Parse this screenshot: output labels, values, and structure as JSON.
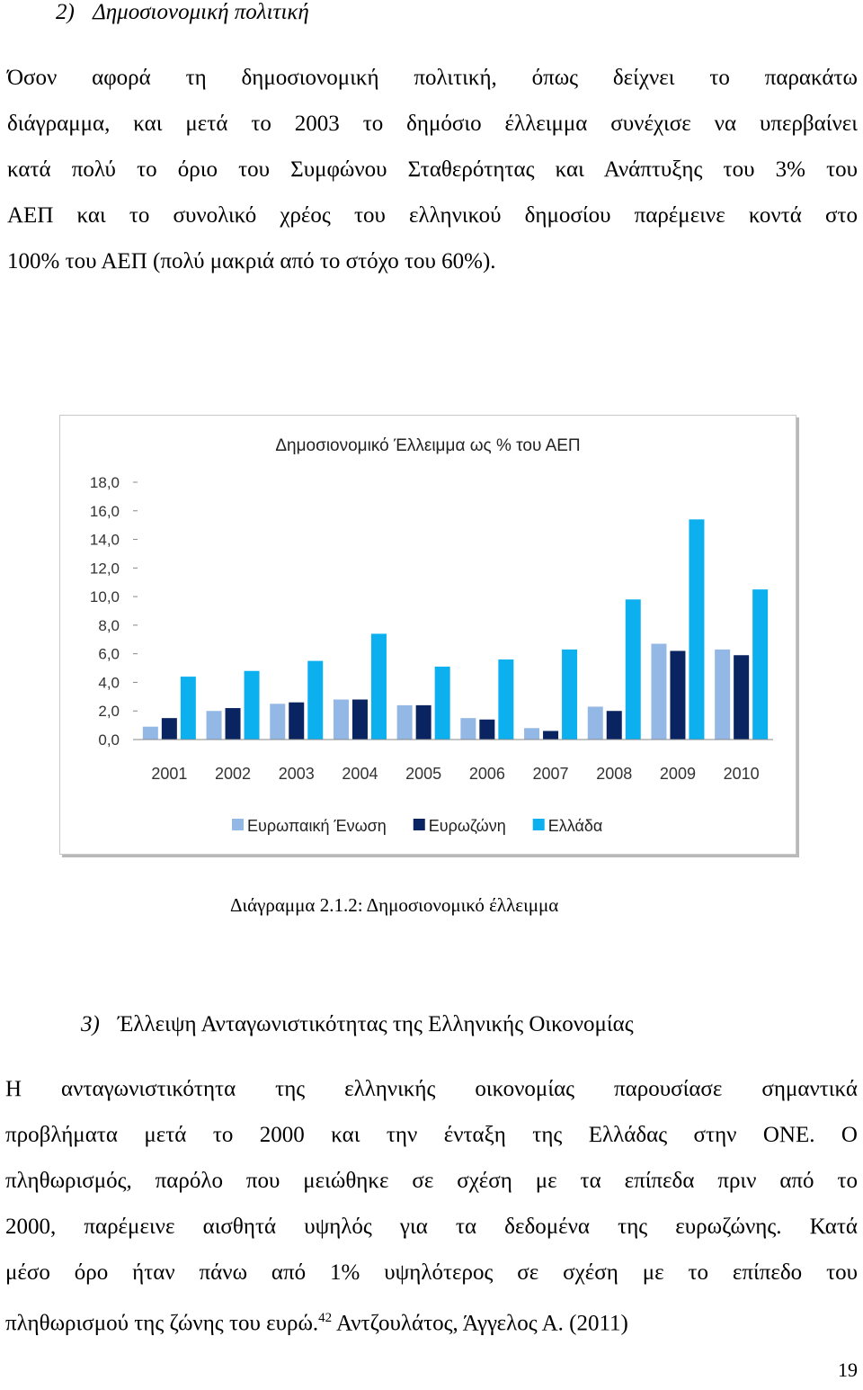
{
  "section2": {
    "heading_num": "2)",
    "heading_text": "Δημοσιονομική πολιτική",
    "lines": [
      "Όσον αφορά τη δημοσιονομική πολιτική, όπως δείχνει το παρακάτω",
      "διάγραμμα, και μετά το 2003 το δημόσιο έλλειμμα συνέχισε να υπερβαίνει",
      "κατά πολύ το όριο του Συμφώνου Σταθερότητας και Ανάπτυξης του 3% του",
      "ΑΕΠ και το συνολικό χρέος του ελληνικού δημοσίου παρέμεινε κοντά στο",
      "100% του ΑΕΠ (πολύ μακριά από το στόχο του 60%)."
    ]
  },
  "chart_data": {
    "type": "bar",
    "title": "Δημοσιονομικό Έλλειμμα ως % του ΑΕΠ",
    "categories": [
      "2001",
      "2002",
      "2003",
      "2004",
      "2005",
      "2006",
      "2007",
      "2008",
      "2009",
      "2010"
    ],
    "series": [
      {
        "name": "Ευρωπαική Ένωση",
        "color": "#94b8e6",
        "values": [
          0.9,
          2.0,
          2.5,
          2.8,
          2.4,
          1.5,
          0.8,
          2.3,
          6.7,
          6.3
        ]
      },
      {
        "name": "Ευρωζώνη",
        "color": "#0a2461",
        "values": [
          1.5,
          2.2,
          2.6,
          2.8,
          2.4,
          1.4,
          0.6,
          2.0,
          6.2,
          5.9
        ]
      },
      {
        "name": "Ελλάδα",
        "color": "#0db0ef",
        "values": [
          4.4,
          4.8,
          5.5,
          7.4,
          5.1,
          5.6,
          6.3,
          9.8,
          15.4,
          10.5
        ]
      }
    ],
    "yticks": [
      "0,0",
      "2,0",
      "4,0",
      "6,0",
      "8,0",
      "10,0",
      "12,0",
      "14,0",
      "16,0",
      "18,0"
    ],
    "ylim": [
      0,
      18
    ],
    "grid": false,
    "legend": "bottom"
  },
  "caption": "Διάγραμμα 2.1.2: Δημοσιονομικό έλλειμμα",
  "section3": {
    "heading_num": "3)",
    "heading_text": "Έλλειψη Ανταγωνιστικότητας της Ελληνικής Οικονομίας",
    "lines": [
      "Η ανταγωνιστικότητα της ελληνικής οικονομίας παρουσίασε σημαντικά",
      "προβλήματα μετά το 2000 και την ένταξη της Ελλάδας στην ΟΝΕ. Ο",
      "πληθωρισμός, παρόλο που μειώθηκε σε σχέση με τα επίπεδα πριν από το",
      "2000, παρέμεινε αισθητά υψηλός για τα δεδομένα της ευρωζώνης. Κατά",
      "μέσο όρο ήταν πάνω από 1% υψηλότερος σε σχέση με το επίπεδο του"
    ],
    "last_line": "πληθωρισμού της ζώνης του ευρώ.",
    "footnote_num": "42",
    "footnote_ref": " Αντζουλάτος, Άγγελος Α. (2011)"
  },
  "page_number": "19"
}
